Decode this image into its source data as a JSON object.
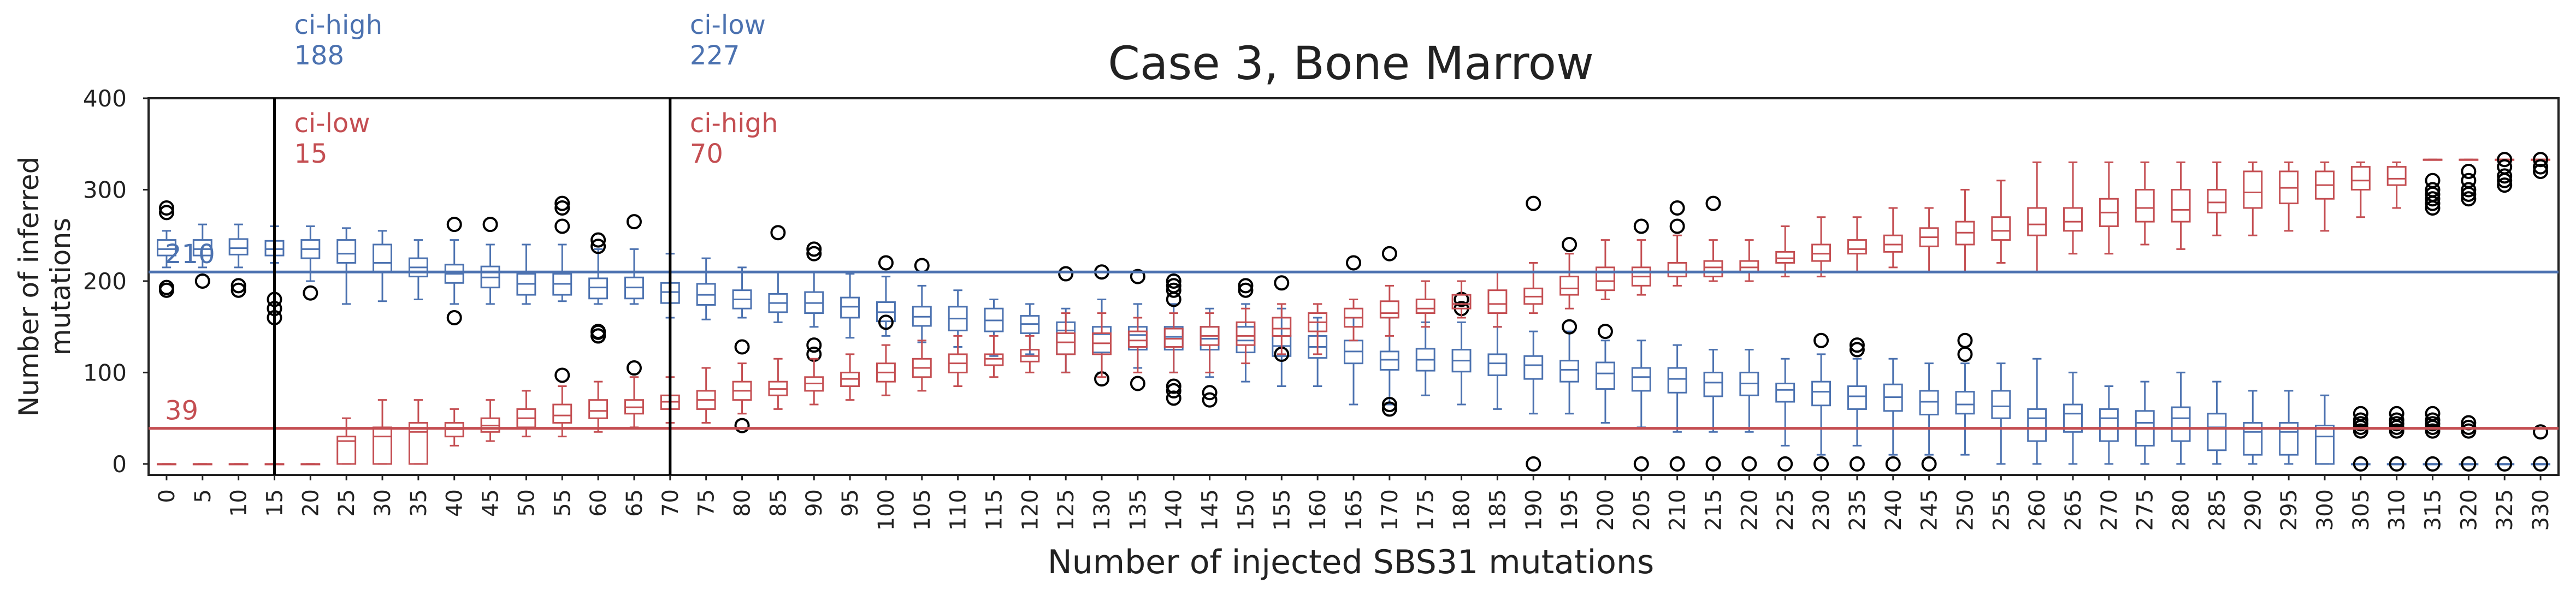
{
  "chart_data": {
    "type": "box",
    "title": "Case 3, Bone Marrow",
    "xlabel": "Number of injected SBS31 mutations",
    "ylabel_lines": [
      "Number of inferred",
      "mutations"
    ],
    "ylim": [
      -12,
      400
    ],
    "yticks": [
      0,
      100,
      200,
      300,
      400
    ],
    "grid": false,
    "x": [
      0,
      5,
      10,
      15,
      20,
      25,
      30,
      35,
      40,
      45,
      50,
      55,
      60,
      65,
      70,
      75,
      80,
      85,
      90,
      95,
      100,
      105,
      110,
      115,
      120,
      125,
      130,
      135,
      140,
      145,
      150,
      155,
      160,
      165,
      170,
      175,
      180,
      185,
      190,
      195,
      200,
      205,
      210,
      215,
      220,
      225,
      230,
      235,
      240,
      245,
      250,
      255,
      260,
      265,
      270,
      275,
      280,
      285,
      290,
      295,
      300,
      305,
      310,
      315,
      320,
      325,
      330
    ],
    "colors": {
      "blue": "#4c72b0",
      "red": "#c44e52",
      "black": "#000000"
    },
    "reference_lines": [
      {
        "series": "blue",
        "y": 210,
        "label": "210"
      },
      {
        "series": "red",
        "y": 39,
        "label": "39"
      }
    ],
    "vertical_markers": [
      {
        "x": 15,
        "top_label_lines": [
          "ci-high",
          "188"
        ],
        "top_color": "blue",
        "inner_label_lines": [
          "ci-low",
          "15"
        ],
        "inner_color": "red"
      },
      {
        "x": 70,
        "top_label_lines": [
          "ci-low",
          "227"
        ],
        "top_color": "blue",
        "inner_label_lines": [
          "ci-high",
          "70"
        ],
        "inner_color": "red"
      }
    ],
    "series": [
      {
        "color": "blue",
        "median": [
          235,
          235,
          236,
          235,
          235,
          230,
          220,
          215,
          208,
          204,
          197,
          197,
          193,
          193,
          188,
          185,
          180,
          176,
          176,
          172,
          166,
          161,
          159,
          157,
          153,
          146,
          142,
          141,
          139,
          137,
          135,
          129,
          128,
          123,
          114,
          114,
          113,
          110,
          108,
          103,
          99,
          95,
          93,
          89,
          88,
          81,
          79,
          74,
          73,
          68,
          65,
          63,
          50,
          55,
          50,
          45,
          50,
          40,
          35,
          35,
          30,
          0,
          0,
          0,
          0,
          0,
          0
        ],
        "q1": [
          228,
          228,
          229,
          228,
          225,
          220,
          210,
          205,
          198,
          193,
          185,
          185,
          181,
          181,
          176,
          174,
          170,
          166,
          165,
          160,
          156,
          151,
          146,
          145,
          143,
          120,
          122,
          125,
          125,
          125,
          122,
          118,
          116,
          110,
          103,
          102,
          101,
          97,
          93,
          90,
          82,
          80,
          78,
          74,
          75,
          68,
          64,
          60,
          58,
          54,
          55,
          50,
          25,
          35,
          25,
          20,
          25,
          15,
          10,
          10,
          0,
          0,
          0,
          0,
          0,
          0,
          0
        ],
        "q3": [
          245,
          245,
          246,
          244,
          245,
          245,
          240,
          225,
          218,
          216,
          208,
          208,
          203,
          204,
          198,
          197,
          190,
          186,
          188,
          182,
          177,
          172,
          172,
          170,
          162,
          155,
          150,
          150,
          150,
          150,
          150,
          140,
          140,
          135,
          123,
          126,
          125,
          120,
          118,
          113,
          111,
          105,
          105,
          100,
          100,
          88,
          90,
          85,
          87,
          80,
          79,
          80,
          60,
          65,
          60,
          58,
          62,
          55,
          45,
          45,
          42,
          0,
          0,
          0,
          0,
          0,
          0
        ],
        "wlo": [
          215,
          215,
          215,
          220,
          200,
          175,
          178,
          180,
          175,
          175,
          175,
          178,
          175,
          175,
          160,
          158,
          160,
          155,
          150,
          138,
          140,
          133,
          128,
          118,
          120,
          100,
          100,
          105,
          100,
          95,
          90,
          85,
          85,
          65,
          65,
          75,
          65,
          60,
          55,
          55,
          45,
          40,
          35,
          35,
          35,
          20,
          10,
          20,
          10,
          10,
          10,
          0,
          0,
          0,
          0,
          0,
          0,
          0,
          0,
          0,
          0,
          0,
          0,
          0,
          0,
          0,
          0
        ],
        "whi": [
          255,
          262,
          262,
          260,
          260,
          258,
          255,
          245,
          245,
          240,
          240,
          240,
          235,
          235,
          230,
          225,
          215,
          210,
          210,
          208,
          205,
          195,
          190,
          180,
          175,
          170,
          180,
          175,
          175,
          170,
          175,
          170,
          160,
          160,
          160,
          155,
          155,
          150,
          145,
          145,
          135,
          135,
          130,
          125,
          125,
          115,
          120,
          115,
          115,
          110,
          110,
          110,
          115,
          100,
          85,
          90,
          100,
          90,
          80,
          80,
          75,
          0,
          0,
          0,
          0,
          0,
          0
        ],
        "outliers": [
          [
            280,
            275,
            193,
            190
          ],
          [
            200
          ],
          [
            195,
            190
          ],
          [
            160,
            170,
            180
          ],
          [
            187
          ],
          [],
          [],
          [],
          [
            160,
            262
          ],
          [
            262
          ],
          [],
          [
            285,
            280,
            260
          ],
          [
            245,
            238,
            140,
            144
          ],
          [
            265
          ],
          [],
          [],
          [
            128
          ],
          [
            253
          ],
          [
            235,
            230,
            130,
            120
          ],
          [],
          [
            220,
            155
          ],
          [
            217
          ],
          [],
          [],
          [],
          [
            208
          ],
          [
            210,
            93
          ],
          [
            205,
            88
          ],
          [
            200,
            195,
            190,
            180,
            85,
            80,
            72
          ],
          [
            78,
            70
          ],
          [
            195,
            190
          ],
          [
            198,
            120
          ],
          [],
          [
            220
          ],
          [
            230,
            65,
            60
          ],
          [],
          [
            180,
            170
          ],
          [],
          [
            285,
            0
          ],
          [
            240,
            150
          ],
          [
            145
          ],
          [
            260,
            0
          ],
          [
            280,
            260,
            0
          ],
          [
            285,
            0
          ],
          [
            0
          ],
          [
            0
          ],
          [
            135,
            0
          ],
          [
            130,
            125,
            0
          ],
          [
            0
          ],
          [
            0
          ],
          [
            135,
            120
          ],
          [],
          [],
          [],
          [],
          [],
          [],
          [],
          [],
          [],
          [],
          [
            55,
            48,
            44,
            40,
            36,
            0
          ],
          [
            55,
            48,
            44,
            40,
            36,
            0
          ],
          [
            55,
            48,
            44,
            40,
            36,
            0
          ],
          [
            45,
            40,
            36,
            0
          ],
          [
            0
          ],
          [
            35,
            0
          ]
        ]
      },
      {
        "color": "red",
        "median": [
          0,
          0,
          0,
          0,
          0,
          25,
          30,
          35,
          38,
          42,
          50,
          53,
          58,
          62,
          68,
          70,
          80,
          82,
          88,
          93,
          100,
          105,
          110,
          115,
          118,
          133,
          132,
          135,
          137,
          140,
          140,
          148,
          155,
          160,
          165,
          170,
          175,
          175,
          183,
          192,
          200,
          205,
          210,
          215,
          215,
          225,
          230,
          235,
          240,
          248,
          253,
          255,
          262,
          265,
          275,
          280,
          278,
          286,
          297,
          302,
          305,
          310,
          312,
          333,
          333,
          333,
          333
        ],
        "q1": [
          0,
          0,
          0,
          0,
          0,
          0,
          0,
          0,
          30,
          35,
          40,
          45,
          50,
          55,
          60,
          60,
          70,
          75,
          80,
          85,
          90,
          95,
          100,
          108,
          112,
          120,
          120,
          128,
          128,
          130,
          130,
          140,
          145,
          150,
          160,
          165,
          170,
          165,
          175,
          185,
          190,
          195,
          205,
          205,
          210,
          220,
          222,
          230,
          232,
          238,
          240,
          245,
          250,
          255,
          260,
          265,
          265,
          275,
          280,
          285,
          290,
          300,
          305,
          333,
          333,
          333,
          333
        ],
        "q3": [
          0,
          0,
          0,
          0,
          0,
          30,
          40,
          45,
          45,
          50,
          60,
          65,
          70,
          70,
          75,
          80,
          90,
          90,
          95,
          100,
          110,
          115,
          120,
          120,
          125,
          143,
          143,
          145,
          148,
          150,
          155,
          160,
          165,
          170,
          178,
          180,
          185,
          190,
          192,
          205,
          215,
          215,
          220,
          222,
          222,
          232,
          240,
          245,
          250,
          258,
          265,
          270,
          280,
          280,
          290,
          300,
          300,
          300,
          320,
          320,
          320,
          325,
          325,
          333,
          333,
          333,
          333
        ],
        "wlo": [
          0,
          0,
          0,
          0,
          0,
          0,
          0,
          0,
          20,
          25,
          30,
          30,
          35,
          40,
          45,
          45,
          55,
          60,
          65,
          70,
          75,
          80,
          85,
          95,
          100,
          100,
          95,
          100,
          100,
          100,
          110,
          120,
          120,
          135,
          140,
          150,
          160,
          150,
          165,
          170,
          180,
          185,
          195,
          200,
          200,
          205,
          205,
          210,
          215,
          210,
          210,
          220,
          210,
          230,
          230,
          240,
          235,
          250,
          250,
          255,
          255,
          270,
          280,
          333,
          333,
          333,
          333
        ],
        "whi": [
          0,
          0,
          0,
          0,
          0,
          50,
          70,
          70,
          60,
          70,
          80,
          85,
          90,
          95,
          95,
          105,
          110,
          115,
          115,
          120,
          130,
          135,
          140,
          140,
          140,
          165,
          165,
          160,
          165,
          165,
          170,
          175,
          175,
          180,
          195,
          200,
          200,
          210,
          220,
          230,
          245,
          245,
          250,
          245,
          245,
          260,
          270,
          270,
          280,
          280,
          300,
          310,
          330,
          330,
          330,
          330,
          330,
          330,
          330,
          330,
          330,
          330,
          330,
          333,
          333,
          333,
          333
        ],
        "outliers": [
          [],
          [],
          [],
          [],
          [],
          [],
          [],
          [],
          [],
          [],
          [],
          [
            97
          ],
          [
            140,
            145
          ],
          [
            105
          ],
          [],
          [],
          [
            42
          ],
          [],
          [],
          [],
          [],
          [],
          [],
          [],
          [],
          [],
          [],
          [],
          [],
          [],
          [],
          [],
          [],
          [],
          [],
          [],
          [],
          [],
          [],
          [],
          [],
          [],
          [],
          [],
          [],
          [],
          [],
          [],
          [],
          [],
          [],
          [],
          [],
          [],
          [],
          [],
          [],
          [],
          [],
          [],
          [],
          [],
          [],
          [
            310,
            300,
            295,
            290,
            285,
            280
          ],
          [
            320,
            310,
            300,
            295,
            290
          ],
          [
            333,
            325,
            315,
            310,
            305
          ],
          [
            333,
            325,
            320
          ]
        ]
      }
    ]
  }
}
